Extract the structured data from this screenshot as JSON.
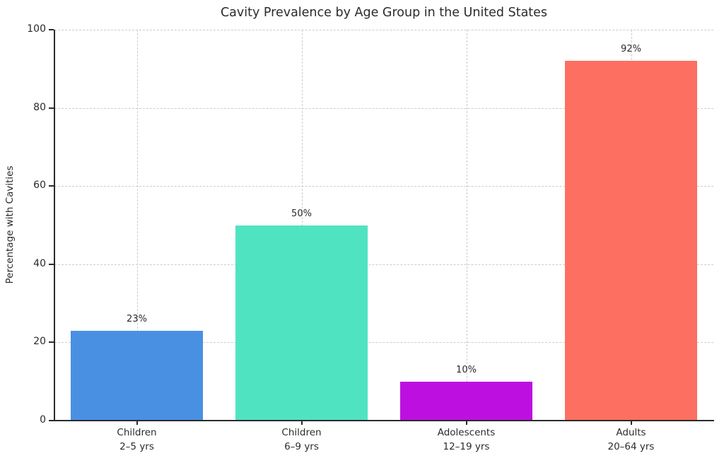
{
  "figure": {
    "background_color": "#ffffff",
    "text_color": "#2b2b2b",
    "grid_color": "#cccccc",
    "spine_color": "#2b2b2b"
  },
  "chart_data": {
    "type": "bar",
    "title": "Cavity Prevalence by Age Group in the United States",
    "xlabel": "",
    "ylabel": "Percentage with Cavities",
    "ylim": [
      0,
      100
    ],
    "yticks": [
      0,
      20,
      40,
      60,
      80,
      100
    ],
    "grid": "dashed, horizontal and vertical",
    "legend": "none",
    "categories": [
      {
        "line1": "Children",
        "line2": "2–5 yrs"
      },
      {
        "line1": "Children",
        "line2": "6–9 yrs"
      },
      {
        "line1": "Adolescents",
        "line2": "12–19 yrs"
      },
      {
        "line1": "Adults",
        "line2": "20–64 yrs"
      }
    ],
    "values": [
      23,
      50,
      10,
      92
    ],
    "value_labels": [
      "23%",
      "50%",
      "10%",
      "92%"
    ],
    "bar_colors": [
      "#4A90E2",
      "#50E3C2",
      "#BD10E0",
      "#FC6F61"
    ]
  }
}
